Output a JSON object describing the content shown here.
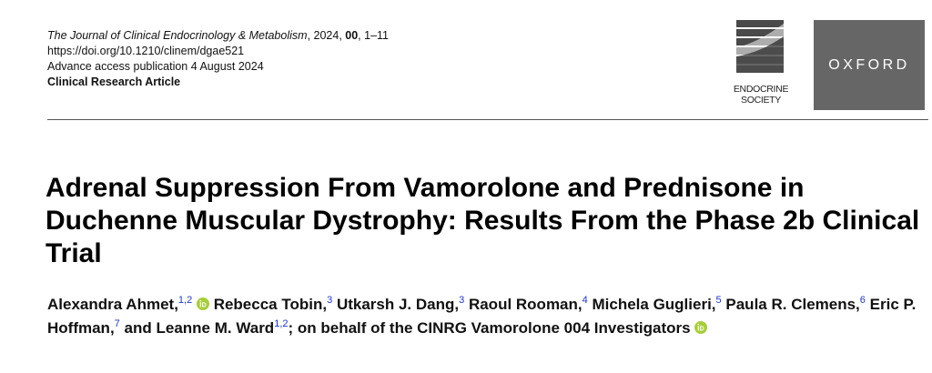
{
  "header": {
    "journal_name": "The Journal of Clinical Endocrinology & Metabolism",
    "journal_year": ", 2024, ",
    "journal_volume": "00",
    "journal_pages": ", 1–11",
    "doi": "https://doi.org/10.1210/clinem/dgae521",
    "publication": "Advance access publication 4 August 2024",
    "article_type": "Clinical Research Article"
  },
  "logos": {
    "endocrine_society_line1": "ENDOCRINE",
    "endocrine_society_line2": "SOCIETY",
    "oxford": "OXFORD",
    "oxford_bg": "#666666",
    "orcid_color": "#A6CE39",
    "affiliation_color": "#1a35d6"
  },
  "title": "Adrenal Suppression From Vamorolone and Prednisone in Duchenne Muscular Dystrophy: Results From the Phase 2b Clinical Trial",
  "authors": [
    {
      "name": "Alexandra Ahmet,",
      "aff": "1,2",
      "orcid": true,
      "sep": " "
    },
    {
      "name": "Rebecca Tobin,",
      "aff": "3",
      "orcid": false,
      "sep": " "
    },
    {
      "name": "Utkarsh J. Dang,",
      "aff": "3",
      "orcid": false,
      "sep": " "
    },
    {
      "name": "Raoul Rooman,",
      "aff": "4",
      "orcid": false,
      "sep": " "
    },
    {
      "name": "Michela Guglieri,",
      "aff": "5",
      "orcid": false,
      "sep": " "
    },
    {
      "name": "Paula R. Clemens,",
      "aff": "6",
      "orcid": false,
      "sep": " "
    },
    {
      "name": "Eric P. Hoffman,",
      "aff": "7",
      "orcid": false,
      "sep": " "
    },
    {
      "name": "and Leanne M. Ward",
      "aff": "1,2",
      "orcid": false,
      "sep": ""
    },
    {
      "name": "; on behalf of the CINRG Vamorolone 004 Investigators",
      "aff": "",
      "orcid": true,
      "sep": ""
    }
  ]
}
